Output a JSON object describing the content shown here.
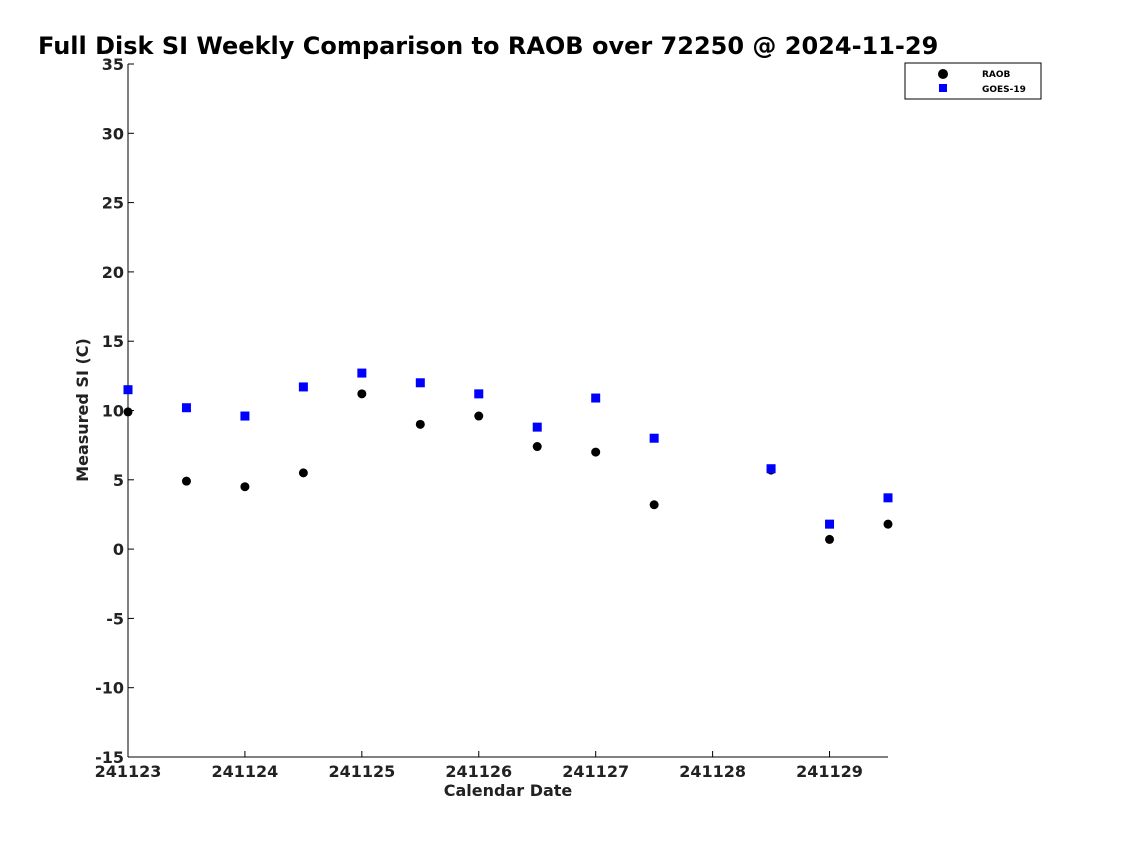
{
  "chart_data": {
    "type": "scatter",
    "title": "Full Disk SI Weekly Comparison to RAOB over 72250 @ 2024-11-29",
    "xlabel": "Calendar Date",
    "ylabel": "Measured SI (C)",
    "xlim": [
      241123,
      241129.5
    ],
    "ylim": [
      -15,
      35
    ],
    "x_ticks": [
      241123,
      241124,
      241125,
      241126,
      241127,
      241128,
      241129
    ],
    "x_tick_labels": [
      "241123",
      "241124",
      "241125",
      "241126",
      "241127",
      "241128",
      "241129"
    ],
    "y_ticks": [
      -15,
      -10,
      -5,
      0,
      5,
      10,
      15,
      20,
      25,
      30,
      35
    ],
    "y_tick_labels": [
      "-15",
      "-10",
      "-5",
      "0",
      "5",
      "10",
      "15",
      "20",
      "25",
      "30",
      "35"
    ],
    "grid": false,
    "legend_position": "top-right",
    "series": [
      {
        "name": "RAOB",
        "marker": "circle",
        "color": "#000000",
        "points": [
          [
            241123.0,
            9.9
          ],
          [
            241123.5,
            4.9
          ],
          [
            241124.0,
            4.5
          ],
          [
            241124.5,
            5.5
          ],
          [
            241125.0,
            11.2
          ],
          [
            241125.5,
            9.0
          ],
          [
            241126.0,
            9.6
          ],
          [
            241126.5,
            7.4
          ],
          [
            241127.0,
            7.0
          ],
          [
            241127.5,
            3.2
          ],
          [
            241128.5,
            5.7
          ],
          [
            241129.0,
            0.7
          ],
          [
            241129.5,
            1.8
          ]
        ]
      },
      {
        "name": "GOES-19",
        "marker": "square",
        "color": "#0000ff",
        "points": [
          [
            241123.0,
            11.5
          ],
          [
            241123.5,
            10.2
          ],
          [
            241124.0,
            9.6
          ],
          [
            241124.5,
            11.7
          ],
          [
            241125.0,
            12.7
          ],
          [
            241125.5,
            12.0
          ],
          [
            241126.0,
            11.2
          ],
          [
            241126.5,
            8.8
          ],
          [
            241127.0,
            10.9
          ],
          [
            241127.5,
            8.0
          ],
          [
            241128.5,
            5.8
          ],
          [
            241129.0,
            1.8
          ],
          [
            241129.5,
            3.7
          ]
        ]
      }
    ]
  }
}
